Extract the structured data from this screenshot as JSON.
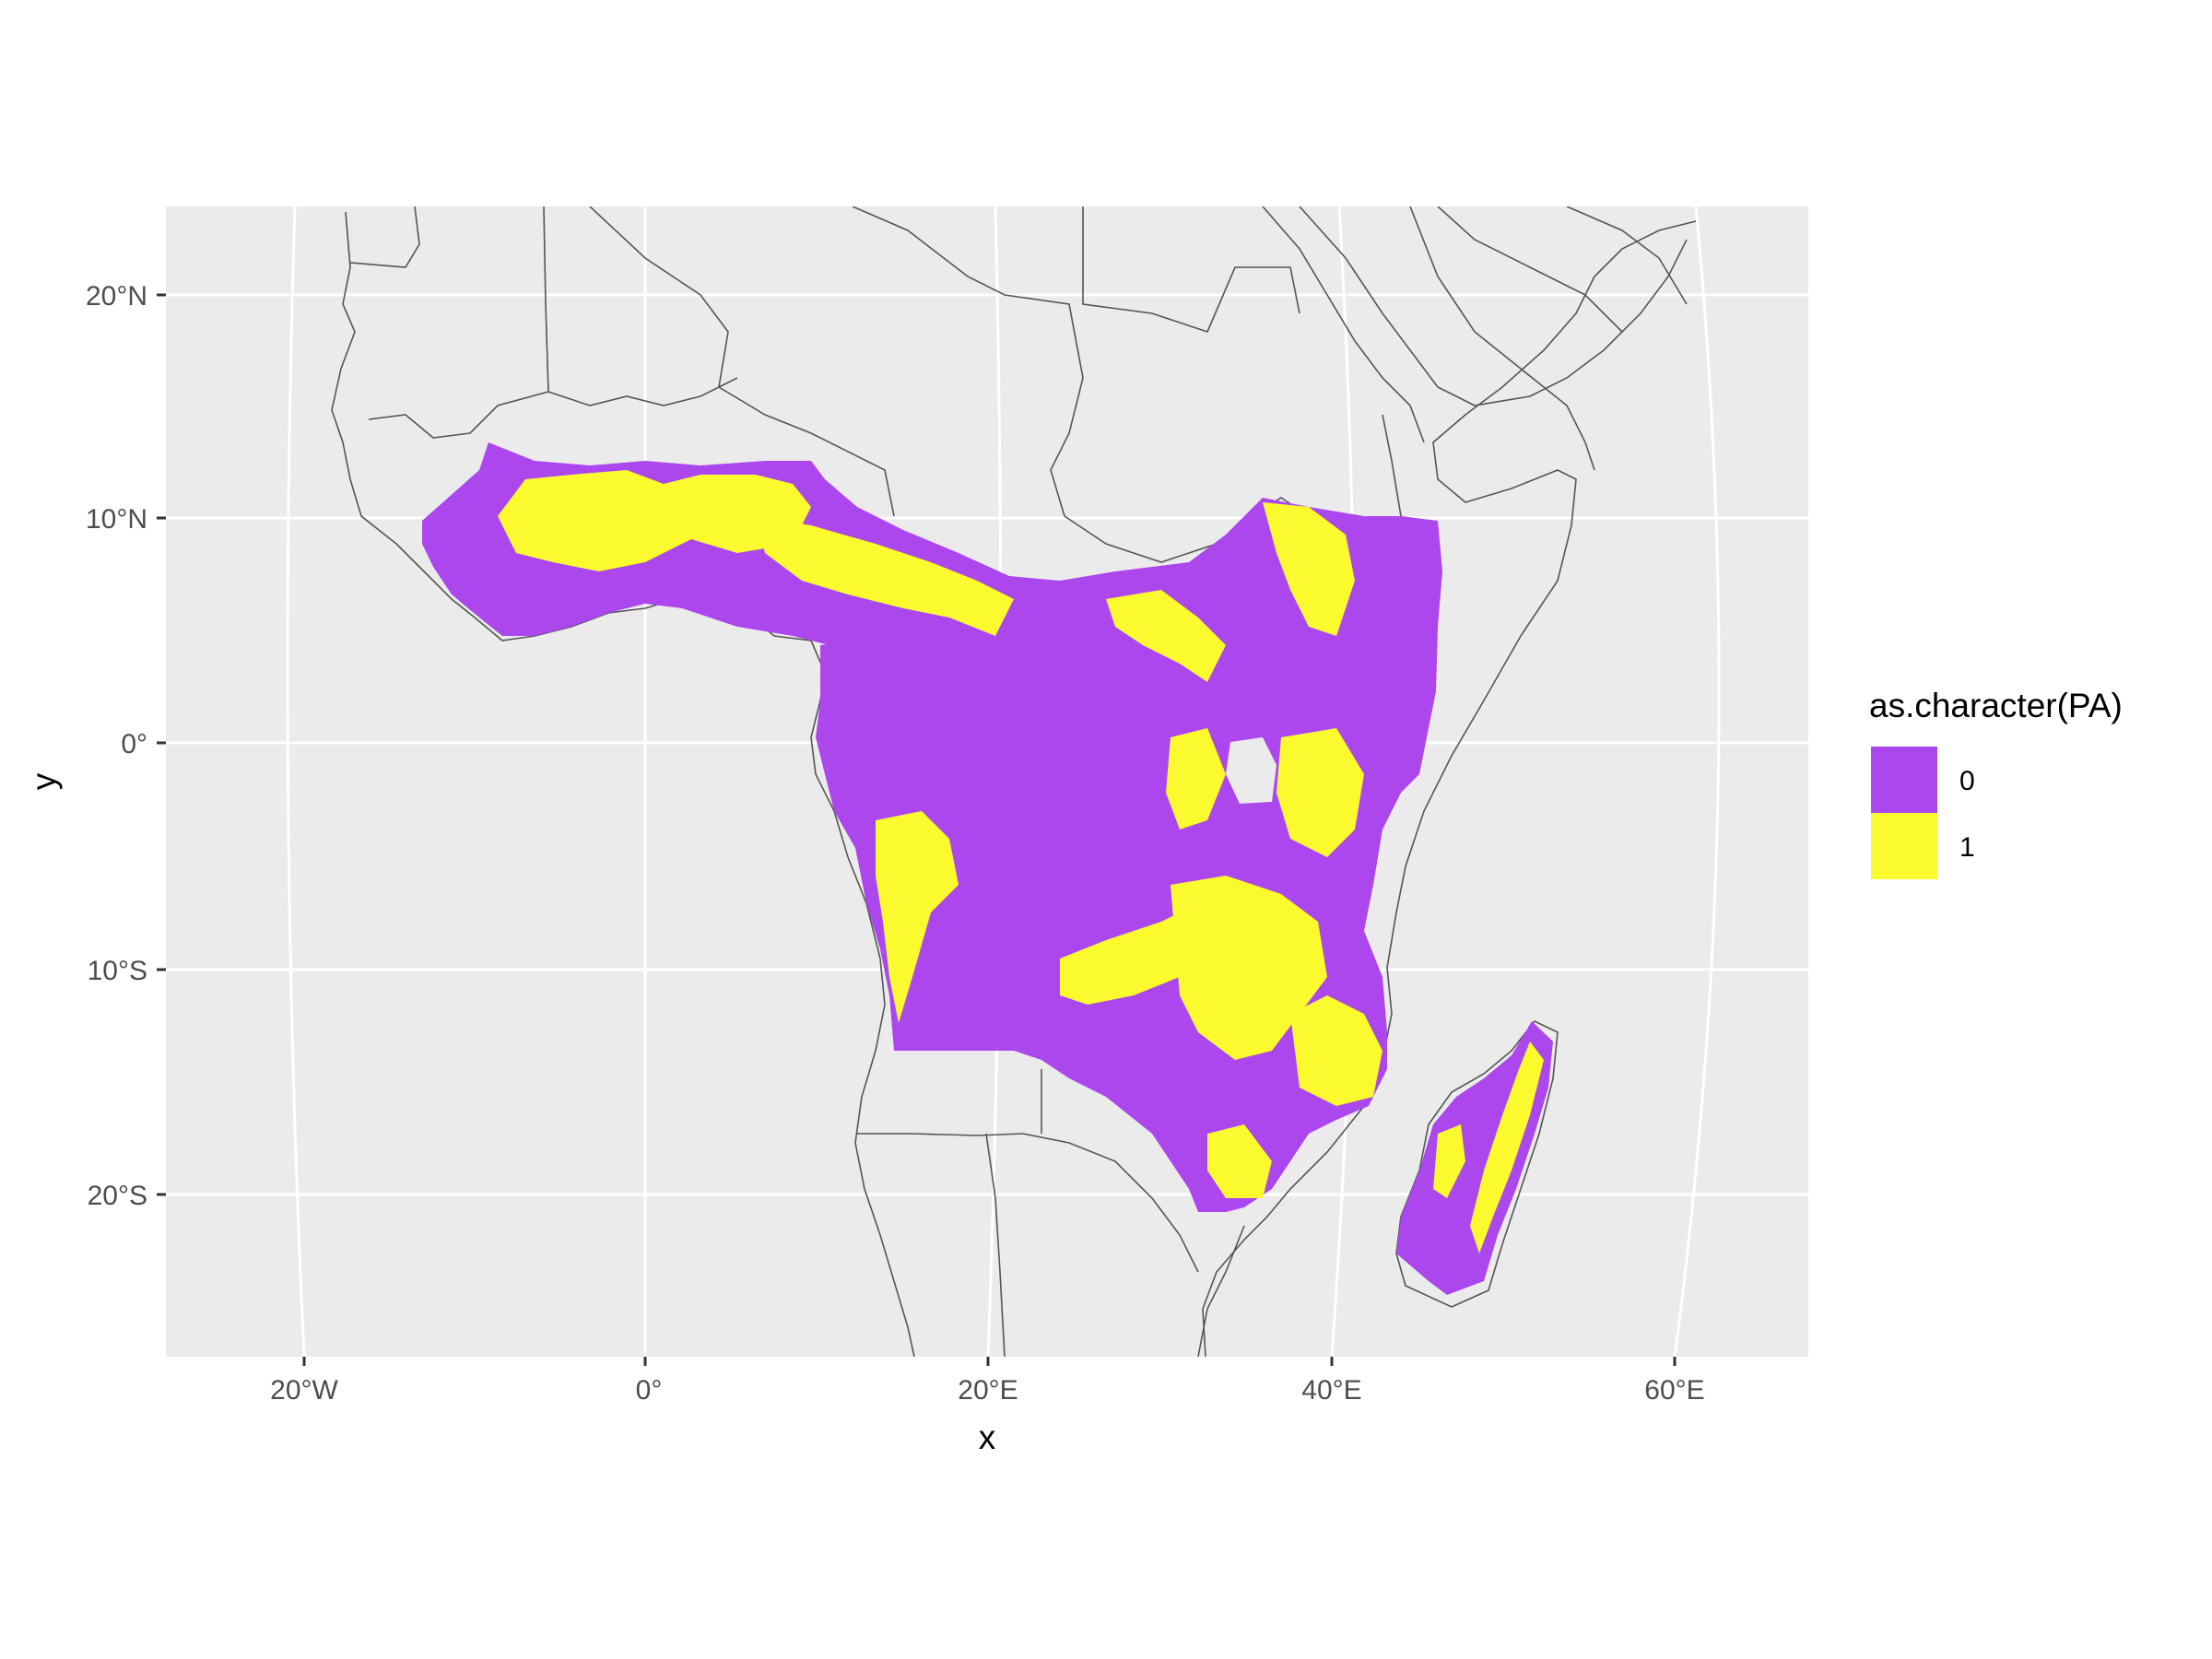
{
  "chart_data": {
    "type": "map",
    "xlabel": "x",
    "ylabel": "y",
    "x_ticks": [
      "20°W",
      "0°",
      "20°E",
      "40°E",
      "60°E"
    ],
    "y_ticks": [
      "20°N",
      "10°N",
      "0°",
      "10°S",
      "20°S"
    ],
    "x_tick_values": [
      -20,
      0,
      20,
      40,
      60
    ],
    "y_tick_values": [
      20,
      10,
      0,
      -10,
      -20
    ],
    "xlim": [
      -28,
      68
    ],
    "ylim": [
      -27,
      24
    ],
    "background": "#ebebeb",
    "grid": true,
    "legend": {
      "title": "as.character(PA)",
      "position": "right",
      "items": [
        {
          "label": "0",
          "color": "#ac47ee"
        },
        {
          "label": "1",
          "color": "#fafa2e"
        }
      ]
    },
    "colors": {
      "0": "#ac47ee",
      "1": "#fafa2e",
      "borders": "#555555",
      "grid": "#ffffff"
    }
  }
}
